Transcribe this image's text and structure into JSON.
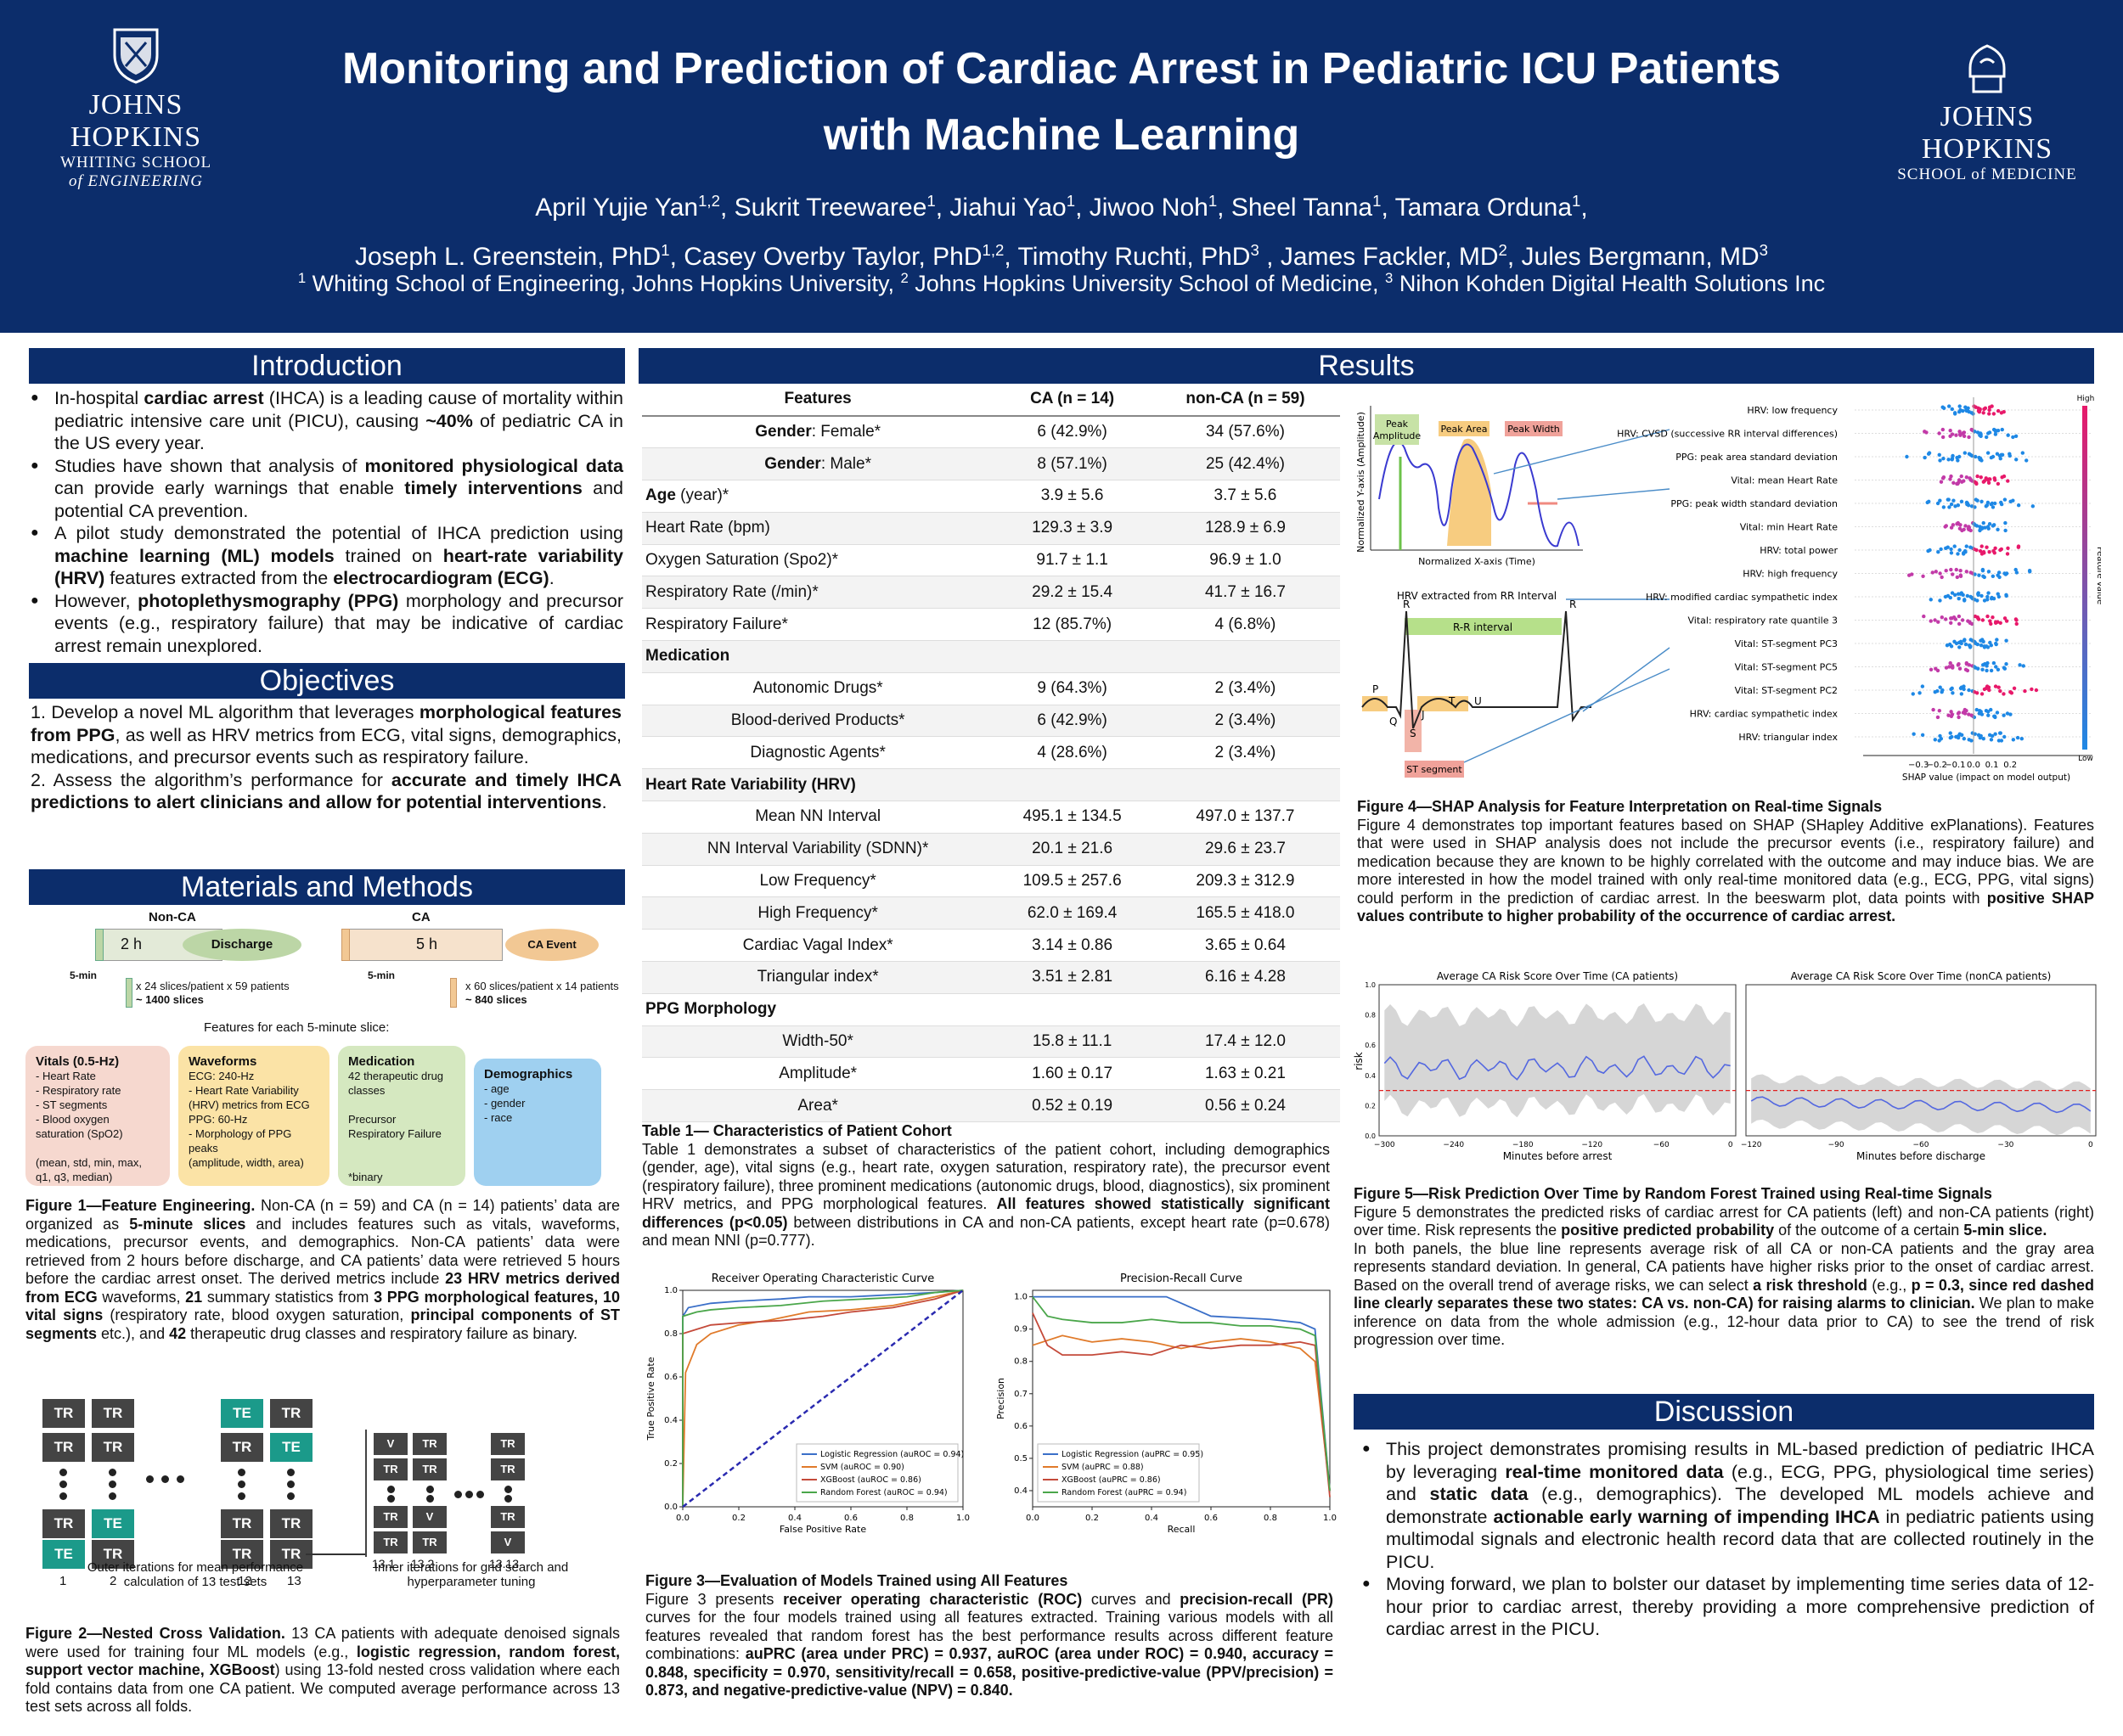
{
  "header": {
    "title_line1": "Monitoring and Prediction of Cardiac Arrest in Pediatric ICU Patients",
    "title_line2": "with Machine Learning",
    "authors_line1": "April Yujie Yan1,2, Sukrit Treewaree1, Jiahui Yao1, Jiwoo Noh1, Sheel Tanna1, Tamara Orduna1,",
    "authors_line2": "Joseph L. Greenstein, PhD1, Casey Overby Taylor, PhD1,2, Timothy Ruchti, PhD3 , James Fackler, MD2, Jules Bergmann, MD3",
    "affiliations": "1 Whiting School of Engineering, Johns Hopkins University, 2 Johns Hopkins University School of Medicine, 3 Nihon Kohden Digital Health Solutions Inc"
  },
  "logos": {
    "left_big": "JOHNS HOPKINS",
    "left_small1": "WHITING SCHOOL",
    "left_small2": "of ENGINEERING",
    "right_big": "JOHNS HOPKINS",
    "right_small": "SCHOOL of MEDICINE"
  },
  "sections": {
    "introduction": "Introduction",
    "objectives": "Objectives",
    "methods": "Materials and Methods",
    "results": "Results",
    "discussion": "Discussion"
  },
  "introduction": [
    "In-hospital cardiac arrest (IHCA) is a leading cause of mortality within pediatric intensive care unit (PICU), causing ~40% of pediatric CA in the US every year.",
    "Studies have shown that analysis of monitored physiological data can provide early warnings that enable timely interventions and potential CA prevention.",
    "A pilot study demonstrated the potential of IHCA prediction using machine learning (ML) models trained on heart-rate variability (HRV) features extracted from the electrocardiogram (ECG).",
    "However, photoplethysmography (PPG) morphology and precursor events (e.g., respiratory failure) that may be indicative of cardiac arrest remain unexplored."
  ],
  "objectives": [
    "1. Develop a novel ML algorithm that leverages morphological features from PPG, as well as HRV metrics from ECG, vital signs, demographics, medications, and precursor events such as respiratory failure.",
    "2. Assess the algorithm’s performance for accurate and timely IHCA predictions to alert clinicians and allow for potential interventions."
  ],
  "fig1": {
    "nonca_label": "Non-CA",
    "ca_label": "CA",
    "nonca_hours": "2 h",
    "ca_hours": "5 h",
    "discharge": "Discharge",
    "ca_event": "CA Event",
    "five_min": "5-min",
    "nonca_slices": "x 24 slices/patient x 59 patients",
    "nonca_total": "~ 1400 slices",
    "ca_slices": "x 60 slices/patient x 14 patients",
    "ca_total": "~ 840 slices",
    "features_title": "Features for each 5-minute slice:",
    "vitals_title": "Vitals (0.5-Hz)",
    "vitals_items": "- Heart Rate\n- Respiratory rate\n- ST segments\n- Blood oxygen\n  saturation (SpO2)\n\n(mean, std, min, max,\nq1, q3, median)",
    "waveforms_title": "Waveforms",
    "waveforms_items": "ECG: 240-Hz\n- Heart Rate Variability\n(HRV) metrics from ECG\nPPG: 60-Hz\n- Morphology of PPG peaks\n(amplitude, width, area)",
    "medication_title": "Medication",
    "medication_items": "42 therapeutic drug\nclasses\n\nPrecursor\nRespiratory Failure\n\n\n*binary",
    "demographics_title": "Demographics",
    "demographics_items": "- age\n- gender\n- race",
    "caption_title": "Figure 1—Feature Engineering.",
    "caption": " Non-CA (n = 59) and CA (n = 14) patients’ data are organized as 5-minute slices and includes features such as vitals, waveforms, medications, precursor events, and demographics. Non-CA patients’ data were retrieved from 2 hours before discharge, and CA patients’ data were retrieved 5 hours before the cardiac arrest onset. The derived metrics include 23 HRV metrics derived from ECG waveforms, 21 summary statistics from 3 PPG morphological features, 10 vital signs (respiratory rate, blood oxygen saturation, principal components of ST segments etc.), and 42 therapeutic drug classes and respiratory failure as binary."
  },
  "fig2": {
    "tr": "TR",
    "te": "TE",
    "v": "V",
    "fold_labels": [
      "1",
      "2",
      "…",
      "12",
      "13"
    ],
    "inner_labels": [
      "13.1",
      "13.2",
      "…",
      "13.13"
    ],
    "outer_caption": "Outer iterations for mean performance calculation of 13 test sets",
    "inner_caption": "Inner iterations for grid search and hyperparameter tuning",
    "caption_title": "Figure 2—Nested Cross Validation.",
    "caption": " 13 CA patients with adequate denoised signals were used for training four ML models (e.g., logistic regression, random forest, support vector machine, XGBoost) using 13-fold nested cross validation where each fold contains data from one CA patient. We computed average performance across 13 test sets across all folds."
  },
  "table1": {
    "headers": [
      "Features",
      "CA (n = 14)",
      "non-CA (n = 59)"
    ],
    "rows": [
      [
        "Gender: Female*",
        "6 (42.9%)",
        "34 (57.6%)"
      ],
      [
        "Gender: Male*",
        "8 (57.1%)",
        "25 (42.4%)"
      ],
      [
        "Age (year)*",
        "3.9 ± 5.6",
        "3.7 ± 5.6"
      ],
      [
        "Heart Rate (bpm)",
        "129.3 ± 3.9",
        "128.9 ± 6.9"
      ],
      [
        "Oxygen Saturation (Spo2)*",
        "91.7 ± 1.1",
        "96.9 ± 1.0"
      ],
      [
        "Respiratory Rate (/min)*",
        "29.2 ± 15.4",
        "41.7 ± 16.7"
      ],
      [
        "Respiratory Failure*",
        "12 (85.7%)",
        "4 (6.8%)"
      ],
      [
        "Medication",
        "",
        ""
      ],
      [
        "Autonomic Drugs*",
        "9 (64.3%)",
        "2 (3.4%)"
      ],
      [
        "Blood-derived Products*",
        "6 (42.9%)",
        "2 (3.4%)"
      ],
      [
        "Diagnostic Agents*",
        "4 (28.6%)",
        "2 (3.4%)"
      ],
      [
        "Heart Rate Variability (HRV)",
        "",
        ""
      ],
      [
        "Mean NN Interval",
        "495.1 ± 134.5",
        "497.0 ± 137.7"
      ],
      [
        "NN Interval Variability (SDNN)*",
        "20.1 ± 21.6",
        "29.6 ± 23.7"
      ],
      [
        "Low Frequency*",
        "109.5 ± 257.6",
        "209.3 ± 312.9"
      ],
      [
        "High Frequency*",
        "62.0 ± 169.4",
        "165.5 ± 418.0"
      ],
      [
        "Cardiac Vagal Index*",
        "3.14 ± 0.86",
        "3.65 ± 0.64"
      ],
      [
        "Triangular index*",
        "3.51 ± 2.81",
        "6.16 ± 4.28"
      ],
      [
        "PPG Morphology",
        "",
        ""
      ],
      [
        "Width-50*",
        "15.8 ± 11.1",
        "17.4 ± 12.0"
      ],
      [
        "Amplitude*",
        "1.60 ± 0.17",
        "1.63 ± 0.21"
      ],
      [
        "Area*",
        "0.52 ± 0.19",
        "0.56 ± 0.24"
      ]
    ],
    "caption_title": "Table 1— Characteristics of Patient Cohort",
    "caption": "Table 1 demonstrates a subset of characteristics of the patient cohort, including demographics (gender, age), vital signs (e.g., heart rate, oxygen saturation, respiratory rate), the precursor event (respiratory failure), three prominent medications (autonomic drugs, blood, diagnostics), six prominent HRV metrics, and PPG morphological features. All features showed statistically significant differences (p<0.05) between distributions in CA and non-CA patients, except heart rate (p=0.678) and mean NNI (p=0.777)."
  },
  "chart_data": [
    {
      "type": "line",
      "title": "Receiver Operating Characteristic Curve",
      "xlabel": "False Positive Rate",
      "ylabel": "True Positive Rate",
      "xlim": [
        0,
        1
      ],
      "ylim": [
        0,
        1
      ],
      "legend": "bottom-right",
      "series": [
        {
          "name": "Logistic Regression (auROC = 0.94)",
          "color": "#3a6fc8",
          "x": [
            0,
            0.0,
            0.02,
            0.1,
            0.2,
            0.35,
            0.45,
            0.6,
            0.75,
            0.9,
            1.0
          ],
          "y": [
            0,
            0.88,
            0.92,
            0.94,
            0.95,
            0.96,
            0.97,
            0.97,
            0.98,
            0.99,
            1.0
          ]
        },
        {
          "name": "SVM (auROC = 0.90)",
          "color": "#e07a2a",
          "x": [
            0,
            0.01,
            0.05,
            0.1,
            0.2,
            0.3,
            0.45,
            0.6,
            0.75,
            0.9,
            1.0
          ],
          "y": [
            0,
            0.62,
            0.75,
            0.8,
            0.84,
            0.86,
            0.9,
            0.91,
            0.93,
            0.97,
            1.0
          ]
        },
        {
          "name": "XGBoost (auROC = 0.86)",
          "color": "#c44a3a",
          "x": [
            0,
            0.0,
            0.05,
            0.1,
            0.2,
            0.35,
            0.5,
            0.6,
            0.75,
            0.9,
            1.0
          ],
          "y": [
            0,
            0.8,
            0.82,
            0.84,
            0.85,
            0.86,
            0.88,
            0.9,
            0.92,
            0.96,
            1.0
          ]
        },
        {
          "name": "Random Forest (auROC = 0.94)",
          "color": "#4aa64a",
          "x": [
            0,
            0.0,
            0.05,
            0.1,
            0.2,
            0.35,
            0.5,
            0.65,
            0.8,
            0.9,
            1.0
          ],
          "y": [
            0,
            0.88,
            0.9,
            0.91,
            0.92,
            0.93,
            0.95,
            0.96,
            0.97,
            0.99,
            1.0
          ]
        },
        {
          "name": "",
          "color": "#2a2ab0",
          "dashed": true,
          "x": [
            0,
            1
          ],
          "y": [
            0,
            1
          ]
        }
      ]
    },
    {
      "type": "line",
      "title": "Precision-Recall Curve",
      "xlabel": "Recall",
      "ylabel": "Precision",
      "xlim": [
        0,
        1
      ],
      "ylim": [
        0.35,
        1.02
      ],
      "legend": "bottom-left",
      "series": [
        {
          "name": "Logistic Regression (auPRC = 0.95)",
          "color": "#3a6fc8",
          "x": [
            0,
            0.45,
            0.5,
            0.55,
            0.6,
            0.8,
            0.9,
            0.95,
            1.0
          ],
          "y": [
            1.0,
            1.0,
            0.98,
            0.96,
            0.94,
            0.93,
            0.92,
            0.9,
            0.4
          ]
        },
        {
          "name": "SVM (auPRC = 0.88)",
          "color": "#e07a2a",
          "x": [
            0,
            0.1,
            0.2,
            0.3,
            0.4,
            0.5,
            0.6,
            0.7,
            0.8,
            0.9,
            0.95,
            1.0
          ],
          "y": [
            0.85,
            0.88,
            0.86,
            0.87,
            0.86,
            0.84,
            0.86,
            0.87,
            0.86,
            0.84,
            0.8,
            0.4
          ]
        },
        {
          "name": "XGBoost (auPRC = 0.86)",
          "color": "#c44a3a",
          "x": [
            0,
            0.05,
            0.1,
            0.2,
            0.3,
            0.4,
            0.5,
            0.6,
            0.7,
            0.8,
            0.9,
            0.95,
            1.0
          ],
          "y": [
            0.95,
            0.85,
            0.82,
            0.82,
            0.83,
            0.82,
            0.85,
            0.84,
            0.85,
            0.85,
            0.86,
            0.85,
            0.38
          ]
        },
        {
          "name": "Random Forest (auPRC = 0.94)",
          "color": "#4aa64a",
          "x": [
            0,
            0.05,
            0.1,
            0.2,
            0.3,
            0.4,
            0.5,
            0.6,
            0.7,
            0.8,
            0.9,
            0.95,
            1.0
          ],
          "y": [
            1.0,
            0.94,
            0.93,
            0.92,
            0.92,
            0.93,
            0.92,
            0.92,
            0.91,
            0.91,
            0.9,
            0.88,
            0.4
          ]
        }
      ]
    }
  ],
  "fig3": {
    "roc_ticks_x": [
      "0.0",
      "0.2",
      "0.4",
      "0.6",
      "0.8",
      "1.0"
    ],
    "roc_ticks_y": [
      "0.0",
      "0.2",
      "0.4",
      "0.6",
      "0.8",
      "1.0"
    ],
    "pr_ticks_x": [
      "0.0",
      "0.2",
      "0.4",
      "0.6",
      "0.8",
      "1.0"
    ],
    "pr_ticks_y": [
      "0.4",
      "0.5",
      "0.6",
      "0.7",
      "0.8",
      "0.9",
      "1.0"
    ],
    "caption_title": "Figure 3—Evaluation of Models Trained using All Features",
    "caption": "Figure 3 presents receiver operating characteristic (ROC) curves and precision-recall (PR) curves for the four models trained using all features extracted. Training various models with all features revealed that random forest has the best performance results across different feature combinations: auPRC (area under PRC) = 0.937, auROC (area under ROC) = 0.940, accuracy = 0.848, specificity = 0.970, sensitivity/recall = 0.658, positive-predictive-value (PPV/precision) = 0.873, and negative-predictive-value (NPV) = 0.840."
  },
  "fig4": {
    "peak_amplitude": "Peak Amplitude",
    "peak_area": "Peak Area",
    "peak_width": "Peak Width",
    "ylabel": "Normalized Y-axis (Amplitude)",
    "xlabel": "Normalized X-axis (Time)",
    "hrv_label": "HRV extracted from RR Interval",
    "rr_label": "R-R interval",
    "r": "R",
    "p": "P",
    "q": "Q",
    "s": "S",
    "j": "J",
    "t": "T",
    "u": "U",
    "st_label": "ST segment",
    "features": [
      "HRV: low frequency",
      "HRV: CVSD (successive RR interval differences)",
      "PPG: peak area standard deviation",
      "Vital: mean Heart Rate",
      "PPG: peak width standard deviation",
      "Vital: min Heart Rate",
      "HRV: total power",
      "HRV: high frequency",
      "HRV: modified cardiac sympathetic index",
      "Vital: respiratory rate quantile 3",
      "Vital: ST-segment PC3",
      "Vital: ST-segment PC5",
      "Vital: ST-segment PC2",
      "HRV: cardiac sympathetic index",
      "HRV: triangular index"
    ],
    "shap_ticks": [
      "−0.3",
      "−0.2",
      "−0.1",
      "0.0",
      "0.1",
      "0.2"
    ],
    "shap_xlabel": "SHAP value (impact on model output)",
    "feature_value": "Feature value",
    "high": "High",
    "low": "Low",
    "caption_title": "Figure 4—SHAP Analysis for Feature Interpretation on Real-time Signals",
    "caption": "Figure 4 demonstrates top important features based on SHAP (SHapley Additive exPlanations). Features that were used in SHAP analysis does not include the precursor events (i.e., respiratory failure) and medication because they are known to be highly correlated with the outcome and may induce bias. We are more interested in how the model trained with only real-time monitored data (e.g., ECG, PPG, vital signs) could perform in the prediction of cardiac arrest. In the beeswarm plot, data points with positive SHAP values contribute to higher probability of the occurrence of cardiac arrest."
  },
  "fig5": {
    "left_title": "Average CA Risk Score Over Time (CA patients)",
    "right_title": "Average CA Risk Score Over Time (nonCA patients)",
    "ylabel": "risk",
    "left_xlabel": "Minutes before arrest",
    "right_xlabel": "Minutes before discharge",
    "left_ticks": [
      "−300",
      "−240",
      "−180",
      "−120",
      "−60",
      "0"
    ],
    "right_ticks": [
      "−120",
      "−90",
      "−60",
      "−30",
      "0"
    ],
    "y_ticks": [
      "0.0",
      "0.2",
      "0.4",
      "0.6",
      "0.8",
      "1.0"
    ],
    "threshold": 0.3,
    "caption_title": "Figure 5—Risk Prediction Over Time by Random Forest Trained using Real-time Signals",
    "caption1": "Figure 5 demonstrates the predicted risks of cardiac arrest for CA patients (left) and non-CA patients (right) over time. Risk represents the positive predicted probability of the outcome of a certain 5-min slice.",
    "caption2": "In both panels, the blue line represents average risk of all CA or non-CA patients and the gray area represents standard deviation. In general, CA patients have higher risks prior to the onset of cardiac arrest. Based on the overall trend of average risks, we can select a risk threshold (e.g., p = 0.3, since red dashed line clearly separates these two states: CA vs. non-CA) for raising alarms to clinician. We plan to make inference on data from the whole admission (e.g., 12-hour data prior to CA) to see the trend of risk progression over time."
  },
  "discussion": [
    "This project demonstrates promising results in ML-based prediction of pediatric IHCA by leveraging real-time monitored data (e.g., ECG, PPG, physiological time series) and static data (e.g., demographics). The developed ML models achieve and demonstrate actionable early warning of impending IHCA in pediatric patients using multimodal signals and electronic health record data that are collected routinely in the PICU.",
    "Moving forward, we plan to bolster our dataset by implementing time series data of 12-hour prior to cardiac arrest, thereby providing a more comprehensive prediction of cardiac arrest in the PICU."
  ]
}
